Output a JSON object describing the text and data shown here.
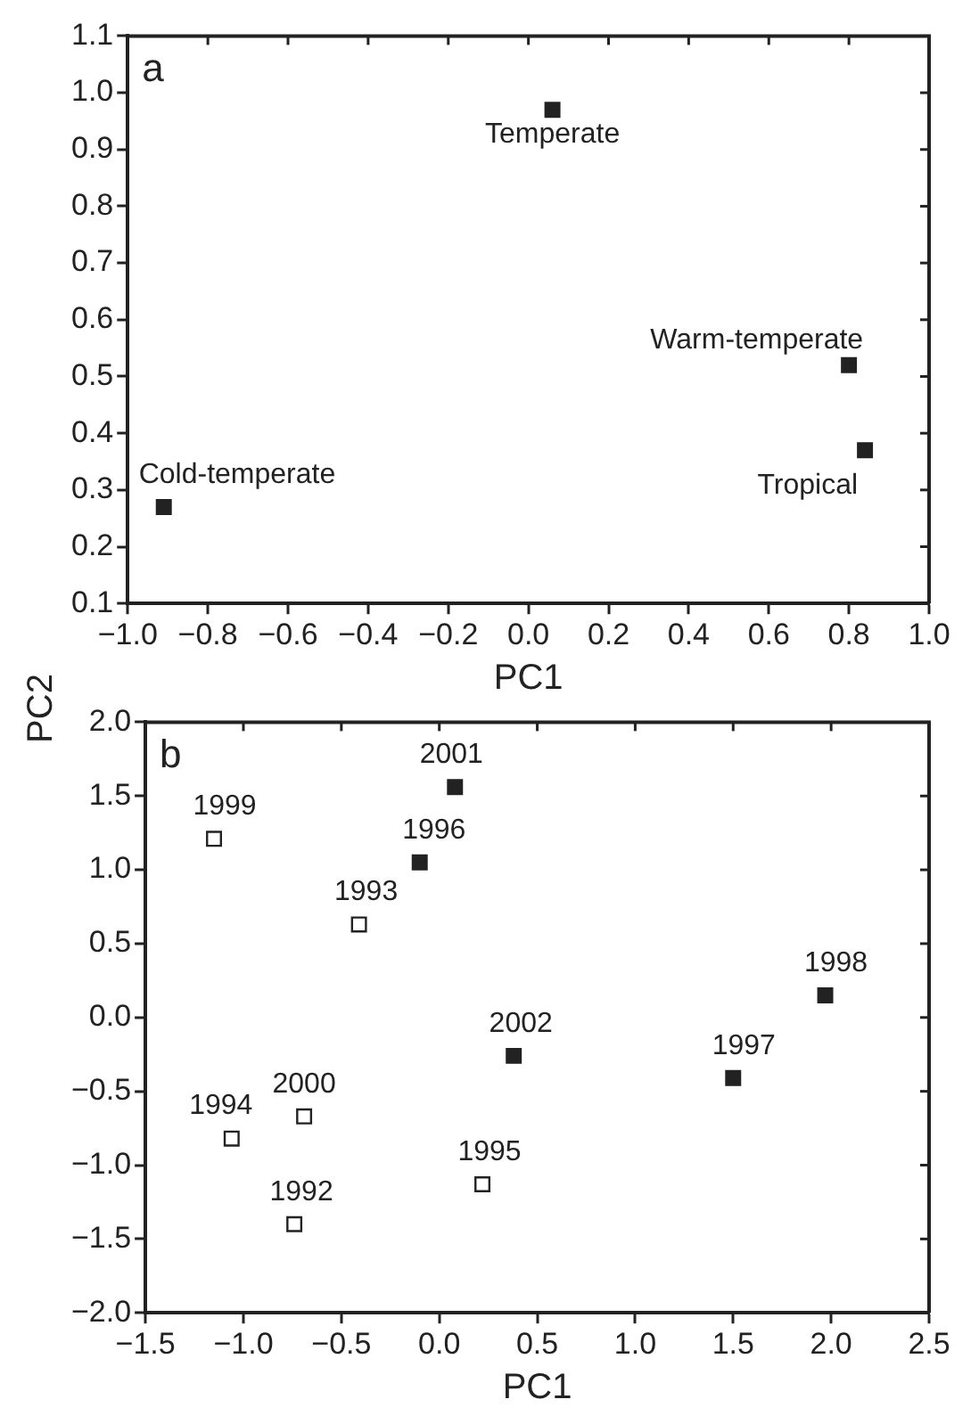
{
  "chart_data": [
    {
      "type": "scatter",
      "title": "a",
      "xlabel": "PC1",
      "ylabel": "PC2",
      "marker": "square",
      "grid": false,
      "legend": false,
      "xlim": [
        -1.0,
        1.0
      ],
      "ylim": [
        0.1,
        1.1
      ],
      "xticks": [
        {
          "value": -1.0,
          "label": "−1.0"
        },
        {
          "value": -0.8,
          "label": "−0.8"
        },
        {
          "value": -0.6,
          "label": "−0.6"
        },
        {
          "value": -0.4,
          "label": "−0.4"
        },
        {
          "value": -0.2,
          "label": "−0.2"
        },
        {
          "value": 0,
          "label": "0.0"
        },
        {
          "value": 0.2,
          "label": "0.2"
        },
        {
          "value": 0.4,
          "label": "0.4"
        },
        {
          "value": 0.6,
          "label": "0.6"
        },
        {
          "value": 0.8,
          "label": "0.8"
        },
        {
          "value": 1.0,
          "label": "1.0"
        }
      ],
      "yticks": [
        {
          "value": 0.1,
          "label": "0.1"
        },
        {
          "value": 0.2,
          "label": "0.2"
        },
        {
          "value": 0.3,
          "label": "0.3"
        },
        {
          "value": 0.4,
          "label": "0.4"
        },
        {
          "value": 0.5,
          "label": "0.5"
        },
        {
          "value": 0.6,
          "label": "0.6"
        },
        {
          "value": 0.7,
          "label": "0.7"
        },
        {
          "value": 0.8,
          "label": "0.8"
        },
        {
          "value": 0.9,
          "label": "0.9"
        },
        {
          "value": 1.0,
          "label": "1.0"
        },
        {
          "value": 1.1,
          "label": "1.1"
        }
      ],
      "series": [
        {
          "color": "#222222",
          "x": [
            -0.91,
            0.06,
            0.8,
            0.84
          ],
          "values": [
            0.27,
            0.97,
            0.52,
            0.37
          ]
        }
      ],
      "annotations": [
        {
          "text": "Cold-temperate",
          "x": -0.91,
          "y": 0.27
        },
        {
          "text": "Temperate",
          "x": 0.06,
          "y": 0.97
        },
        {
          "text": "Warm-temperate",
          "x": 0.8,
          "y": 0.52
        },
        {
          "text": "Tropical",
          "x": 0.84,
          "y": 0.37
        }
      ]
    },
    {
      "type": "scatter",
      "title": "b",
      "xlabel": "PC1",
      "marker": "square",
      "grid": false,
      "legend": false,
      "xlim": [
        -1.5,
        2.5
      ],
      "ylim": [
        -2.0,
        2.0
      ],
      "xticks": [
        {
          "value": -1.5,
          "label": "−1.5"
        },
        {
          "value": -1.0,
          "label": "−1.0"
        },
        {
          "value": -0.5,
          "label": "−0.5"
        },
        {
          "value": 0,
          "label": "0.0"
        },
        {
          "value": 0.5,
          "label": "0.5"
        },
        {
          "value": 1.0,
          "label": "1.0"
        },
        {
          "value": 1.5,
          "label": "1.5"
        },
        {
          "value": 2.0,
          "label": "2.0"
        },
        {
          "value": 2.5,
          "label": "2.5"
        }
      ],
      "yticks": [
        {
          "value": -2.0,
          "label": "−2.0"
        },
        {
          "value": -1.5,
          "label": "−1.5"
        },
        {
          "value": -1.0,
          "label": "−1.0"
        },
        {
          "value": -0.5,
          "label": "−0.5"
        },
        {
          "value": 0,
          "label": "0.0"
        },
        {
          "value": 0.5,
          "label": "0.5"
        },
        {
          "value": 1.0,
          "label": "1.0"
        },
        {
          "value": 1.5,
          "label": "1.5"
        },
        {
          "value": 2.0,
          "label": "2.0"
        }
      ],
      "series": [
        {
          "color": "#ffffff",
          "x": [
            -1.15,
            -0.41,
            -1.06,
            -0.69,
            -0.74,
            0.22
          ],
          "values": [
            1.21,
            0.63,
            -0.82,
            -0.67,
            -1.4,
            -1.13
          ]
        },
        {
          "color": "#222222",
          "x": [
            -0.1,
            0.08,
            0.38,
            1.5,
            1.97
          ],
          "values": [
            1.05,
            1.56,
            -0.26,
            -0.41,
            0.15
          ]
        }
      ],
      "annotations": [
        {
          "text": "1999",
          "x": -1.15,
          "y": 1.21
        },
        {
          "text": "1993",
          "x": -0.41,
          "y": 0.63
        },
        {
          "text": "1994",
          "x": -1.06,
          "y": -0.82
        },
        {
          "text": "2000",
          "x": -0.69,
          "y": -0.67
        },
        {
          "text": "1992",
          "x": -0.74,
          "y": -1.4
        },
        {
          "text": "1995",
          "x": 0.22,
          "y": -1.13
        },
        {
          "text": "1996",
          "x": -0.1,
          "y": 1.05
        },
        {
          "text": "2001",
          "x": 0.08,
          "y": 1.56
        },
        {
          "text": "2002",
          "x": 0.38,
          "y": -0.26
        },
        {
          "text": "1997",
          "x": 1.5,
          "y": -0.41
        },
        {
          "text": "1998",
          "x": 1.97,
          "y": 0.15
        }
      ]
    }
  ]
}
